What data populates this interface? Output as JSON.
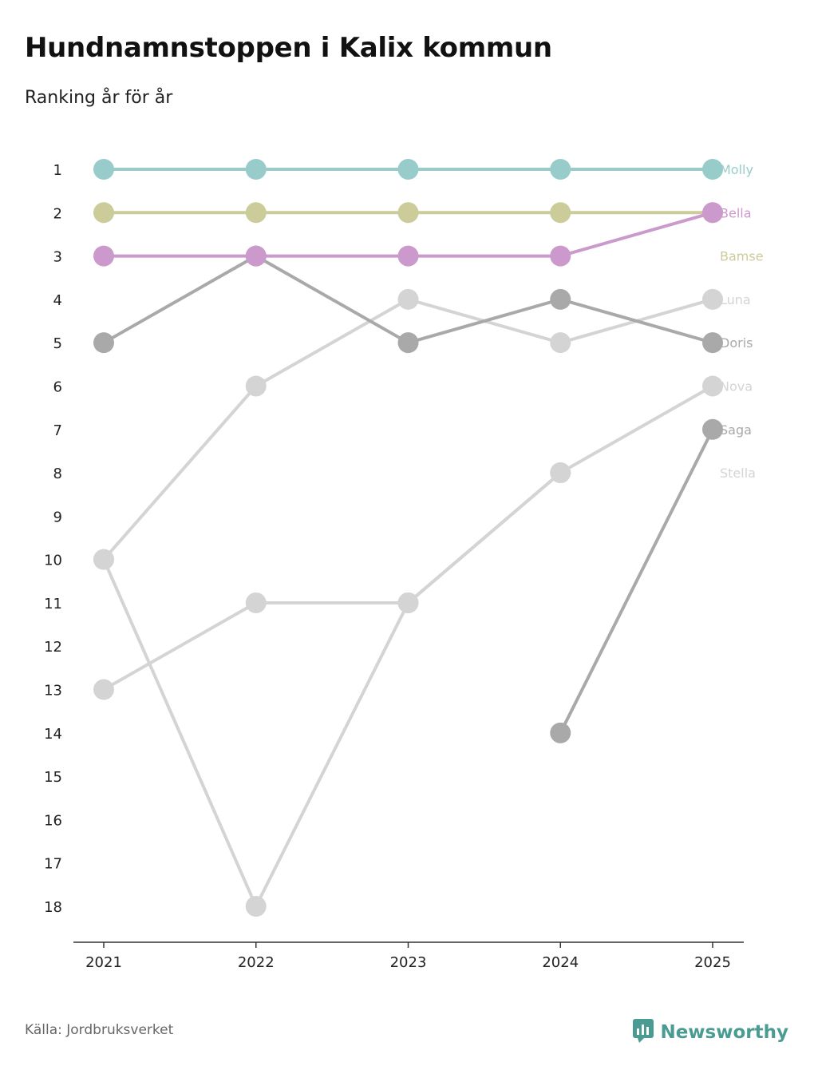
{
  "title": "Hundnamnstoppen i Kalix kommun",
  "subtitle": "Ranking år för år",
  "source": "Källa: Jordbruksverket",
  "brand": {
    "name": "Newsworthy",
    "icon": "newsworthy-logo-icon",
    "color": "#4a9c93"
  },
  "chart_data": {
    "type": "line",
    "subtype": "bump",
    "x": [
      "2021",
      "2022",
      "2023",
      "2024",
      "2025"
    ],
    "y_ticks": [
      1,
      2,
      3,
      4,
      5,
      6,
      7,
      8,
      9,
      10,
      11,
      12,
      13,
      14,
      15,
      16,
      17,
      18
    ],
    "ylim": [
      1,
      18
    ],
    "y_reversed": true,
    "grid": false,
    "series": [
      {
        "name": "Stella",
        "color": "#d4d4d4",
        "values": [
          13,
          11,
          11,
          8,
          null
        ]
      },
      {
        "name": "Nova",
        "color": "#d4d4d4",
        "values": [
          10,
          18,
          11,
          8,
          6
        ]
      },
      {
        "name": "Luna",
        "color": "#d4d4d4",
        "values": [
          10,
          6,
          4,
          5,
          4
        ]
      },
      {
        "name": "Saga",
        "color": "#a9a9a9",
        "values": [
          null,
          null,
          null,
          14,
          7
        ]
      },
      {
        "name": "Doris",
        "color": "#a9a9a9",
        "values": [
          5,
          3,
          5,
          4,
          5
        ]
      },
      {
        "name": "Molly",
        "color": "#98ccca",
        "values": [
          1,
          1,
          1,
          1,
          1
        ]
      },
      {
        "name": "Bamse",
        "color": "#cccc9a",
        "values": [
          2,
          2,
          2,
          2,
          2
        ]
      },
      {
        "name": "Bella",
        "color": "#cc99cc",
        "values": [
          3,
          3,
          3,
          3,
          2
        ]
      }
    ],
    "labels": [
      {
        "name": "Molly",
        "rank": 1,
        "color": "#98ccca"
      },
      {
        "name": "Bella",
        "rank": 2,
        "color": "#cc99cc"
      },
      {
        "name": "Bamse",
        "rank": 3,
        "color": "#cccc9a"
      },
      {
        "name": "Luna",
        "rank": 4,
        "color": "#d4d4d4"
      },
      {
        "name": "Doris",
        "rank": 5,
        "color": "#a9a9a9"
      },
      {
        "name": "Nova",
        "rank": 6,
        "color": "#d4d4d4"
      },
      {
        "name": "Saga",
        "rank": 7,
        "color": "#a9a9a9"
      },
      {
        "name": "Stella",
        "rank": 8,
        "color": "#d4d4d4"
      }
    ]
  }
}
